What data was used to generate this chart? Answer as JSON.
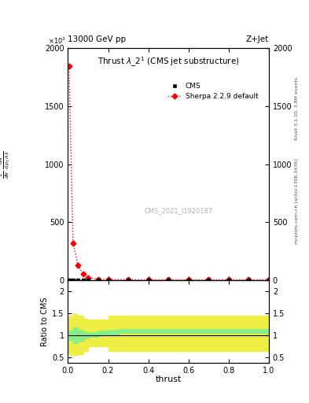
{
  "title_top": "13000 GeV pp",
  "title_right": "Z+Jet",
  "plot_title": "Thrust $\\lambda\\_2^1$ (CMS jet substructure)",
  "xlabel": "thrust",
  "ylabel_ratio": "Ratio to CMS",
  "cms_label": "CMS",
  "sherpa_label": "Sherpa 2.2.9 default",
  "watermark": "CMS_2021_I1920187",
  "right_label": "mcplots.cern.ch [arXiv:1306.3436]",
  "right_label2": "Rivet 3.1.10, 3.8M events",
  "xlim": [
    0,
    1.0
  ],
  "ylim_main": [
    0,
    2000
  ],
  "ylim_ratio": [
    0.38,
    2.25
  ],
  "yticks_main": [
    0,
    500,
    1000,
    1500,
    2000
  ],
  "ytick_labels_main": [
    "0",
    "500",
    "1000",
    "1500",
    "2000"
  ],
  "yticks_ratio": [
    0.5,
    1.0,
    1.5,
    2.0
  ],
  "ytick_labels_ratio": [
    "0.5",
    "1",
    "1.5",
    "2"
  ],
  "sherpa_x": [
    0.005,
    0.025,
    0.05,
    0.075,
    0.1,
    0.15,
    0.2,
    0.3,
    0.4,
    0.5,
    0.6,
    0.7,
    0.8,
    0.9,
    1.0
  ],
  "sherpa_y": [
    1850,
    320,
    130,
    50,
    18,
    8,
    4,
    2,
    1.5,
    1.5,
    1.5,
    1.5,
    1.5,
    1.5,
    1.5
  ],
  "cms_x": [
    0.005,
    0.025,
    0.05,
    0.075,
    0.1,
    0.15,
    0.2,
    0.3,
    0.4,
    0.5,
    0.6,
    0.7,
    0.8,
    0.9,
    1.0
  ],
  "cms_y": [
    1,
    1,
    1,
    1,
    1,
    1,
    1,
    1,
    1,
    1,
    1,
    1,
    1,
    1,
    1
  ],
  "ratio_x_lo": [
    0.0,
    0.005,
    0.025,
    0.05,
    0.075,
    0.1,
    0.15,
    0.2,
    0.25,
    1.0
  ],
  "ratio_x_hi": [
    0.005,
    0.025,
    0.05,
    0.075,
    0.1,
    0.15,
    0.2,
    0.25,
    1.0,
    1.0
  ],
  "ratio_green_lo": [
    1.0,
    0.9,
    0.82,
    0.88,
    0.93,
    0.97,
    1.0,
    1.02,
    1.05,
    1.05
  ],
  "ratio_green_hi": [
    1.0,
    1.1,
    1.18,
    1.12,
    1.07,
    1.07,
    1.1,
    1.12,
    1.15,
    1.15
  ],
  "ratio_yellow_lo": [
    0.6,
    0.55,
    0.55,
    0.58,
    0.65,
    0.75,
    0.75,
    0.65,
    0.65,
    0.65
  ],
  "ratio_yellow_hi": [
    1.4,
    1.45,
    1.48,
    1.45,
    1.38,
    1.35,
    1.35,
    1.45,
    1.45,
    1.45
  ],
  "cms_color": "black",
  "sherpa_color": "red",
  "green_color": "#88EE88",
  "yellow_color": "#EEEE44",
  "background_color": "white",
  "tick_fontsize": 7,
  "label_fontsize": 7,
  "title_fontsize": 7.5
}
